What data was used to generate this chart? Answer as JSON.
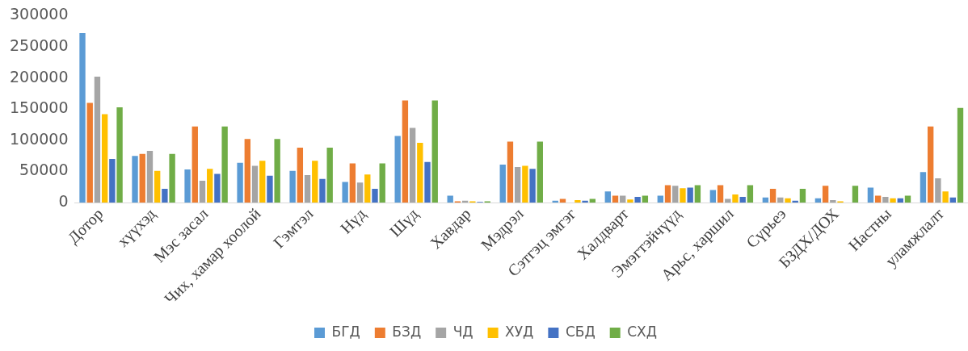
{
  "chart_data": {
    "type": "bar",
    "categories": [
      "Дотор",
      "хүүхэд",
      "Мэс засал",
      "Чих, хамар хоолой",
      "Гэмтэл",
      "Нүд",
      "Шүд",
      "Хавдар",
      "Мэдрэл",
      "Сэтгэц эмгэг",
      "Халдварт",
      "Эмэгтэйчүүд",
      "Арьс, харшил",
      "Сүрьеэ",
      "БЗДХ/ДОХ",
      "Настны",
      "уламжлалт"
    ],
    "series": [
      {
        "name": "БГД",
        "color": "#5b9bd5",
        "values": [
          272000,
          75000,
          53000,
          64000,
          51000,
          33000,
          107000,
          11000,
          61000,
          3000,
          18000,
          11000,
          20000,
          8000,
          7000,
          24000,
          49000
        ]
      },
      {
        "name": "БЗД",
        "color": "#ed7d31",
        "values": [
          160000,
          78000,
          122000,
          102000,
          88000,
          63000,
          164000,
          2000,
          98000,
          6000,
          11000,
          28000,
          28000,
          22000,
          27000,
          11000,
          122000
        ]
      },
      {
        "name": "ЧД",
        "color": "#a5a5a5",
        "values": [
          202000,
          83000,
          35000,
          59000,
          44000,
          32000,
          120000,
          3000,
          57000,
          null,
          11000,
          27000,
          6000,
          8000,
          4000,
          9000,
          39000
        ]
      },
      {
        "name": "ХУД",
        "color": "#ffc000",
        "values": [
          142000,
          51000,
          54000,
          67000,
          67000,
          45000,
          96000,
          2000,
          59000,
          4000,
          5000,
          23000,
          13000,
          7000,
          2000,
          7000,
          18000
        ]
      },
      {
        "name": "СБД",
        "color": "#4472c4",
        "values": [
          70000,
          22000,
          46000,
          43000,
          38000,
          22000,
          65000,
          1000,
          54000,
          3000,
          9000,
          24000,
          9000,
          3000,
          0,
          7000,
          8000
        ]
      },
      {
        "name": "СХД",
        "color": "#70ad47",
        "values": [
          153000,
          78000,
          122000,
          102000,
          88000,
          63000,
          164000,
          2000,
          98000,
          6000,
          11000,
          28000,
          28000,
          22000,
          27000,
          11000,
          152000
        ]
      }
    ],
    "ylim": [
      0,
      300000
    ],
    "yticks": [
      0,
      50000,
      100000,
      150000,
      200000,
      250000,
      300000
    ],
    "grid": false,
    "legend": "bottom"
  }
}
